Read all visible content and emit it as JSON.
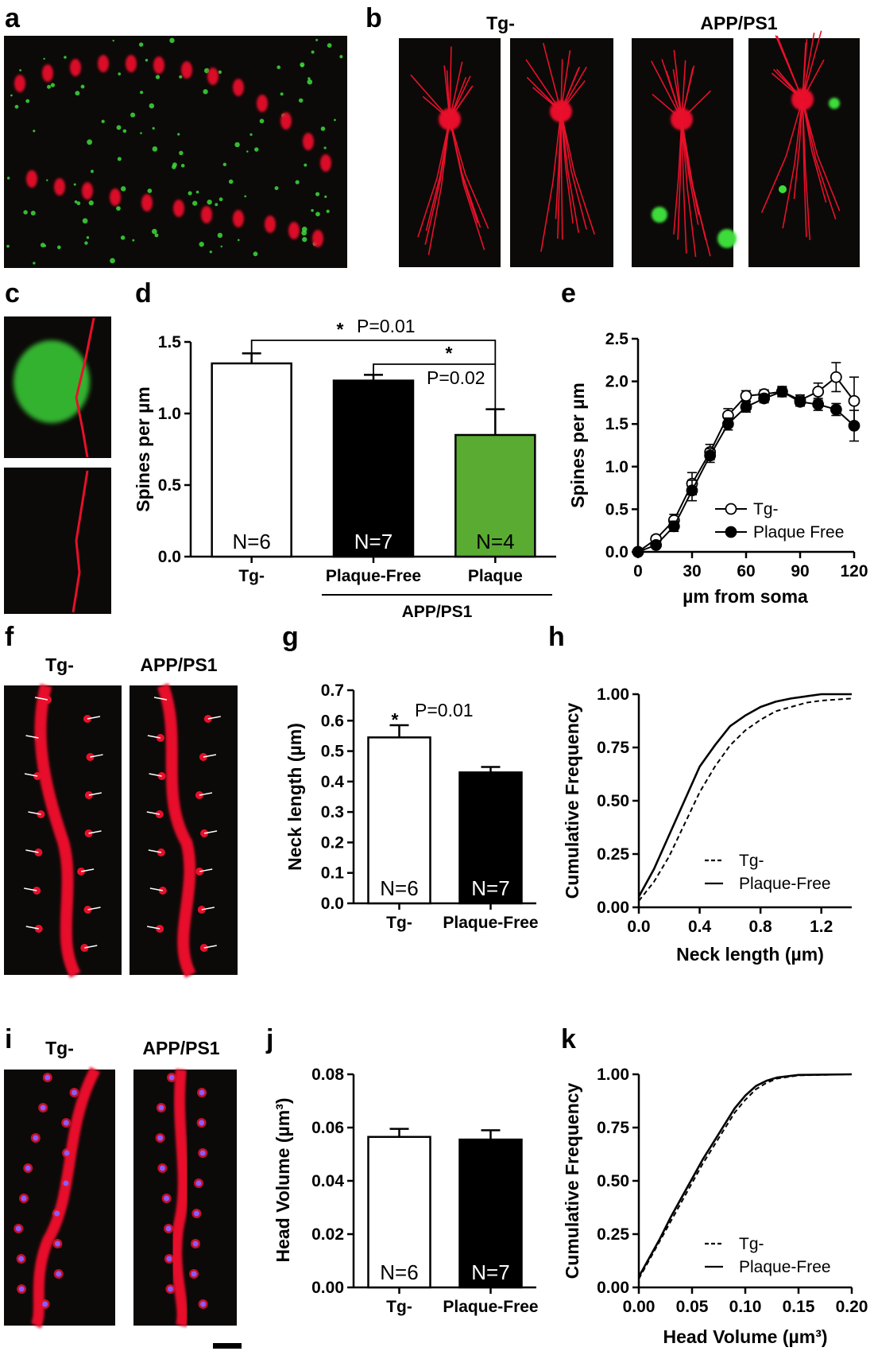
{
  "panel_labels": {
    "a": "a",
    "b": "b",
    "c": "c",
    "d": "d",
    "e": "e",
    "f": "f",
    "g": "g",
    "h": "h",
    "i": "i",
    "j": "j",
    "k": "k"
  },
  "image_headers": {
    "b_left": "Tg-",
    "b_right": "APP/PS1",
    "f_left": "Tg-",
    "f_right": "APP/PS1",
    "i_left": "Tg-",
    "i_right": "APP/PS1"
  },
  "colors": {
    "microscopy_bg": "#0a0808",
    "neuron_red": "#e8102a",
    "plaque_green": "#3ddc3a",
    "spine_marker": "#ffffff",
    "puncta_purple": "#8a5cff",
    "bar_tg": "#ffffff",
    "bar_plaque_free": "#000000",
    "bar_plaque": "#5aab32"
  },
  "icons": {
    "microscopy": "fluorescence-micrograph"
  },
  "chart_data": [
    {
      "id": "d",
      "type": "bar",
      "categories": [
        "Tg-",
        "Plaque-Free",
        "Plaque"
      ],
      "group_label": "APP/PS1",
      "values": [
        1.35,
        1.23,
        0.85
      ],
      "errors": [
        0.07,
        0.04,
        0.18
      ],
      "n_labels": [
        "N=6",
        "N=7",
        "N=4"
      ],
      "bar_colors": [
        "#ffffff",
        "#000000",
        "#5aab32"
      ],
      "ylabel": "Spines per µm",
      "ylim": [
        0,
        1.5
      ],
      "yticks": [
        "0.0",
        "0.5",
        "1.0",
        "1.5"
      ],
      "significance": [
        {
          "between": [
            0,
            2
          ],
          "star": "*",
          "p": "P=0.01"
        },
        {
          "between": [
            1,
            2
          ],
          "star": "*",
          "p": "P=0.02"
        }
      ]
    },
    {
      "id": "e",
      "type": "line",
      "xlabel": "µm from soma",
      "ylabel": "Spines per µm",
      "xlim": [
        0,
        120
      ],
      "ylim": [
        0,
        2.5
      ],
      "xticks": [
        "0",
        "30",
        "60",
        "90",
        "120"
      ],
      "yticks": [
        "0.0",
        "0.5",
        "1.0",
        "1.5",
        "2.0",
        "2.5"
      ],
      "x": [
        0,
        10,
        20,
        30,
        40,
        50,
        60,
        70,
        80,
        90,
        100,
        110,
        120
      ],
      "legend_position": "lower right",
      "series": [
        {
          "name": "Tg-",
          "marker": "open-circle",
          "values": [
            0.0,
            0.15,
            0.37,
            0.8,
            1.17,
            1.6,
            1.83,
            1.85,
            1.88,
            1.78,
            1.88,
            2.05,
            1.77
          ],
          "errors": [
            0.02,
            0.04,
            0.07,
            0.13,
            0.09,
            0.08,
            0.06,
            0.05,
            0.06,
            0.06,
            0.1,
            0.17,
            0.28
          ]
        },
        {
          "name": "Plaque Free",
          "marker": "filled-circle",
          "values": [
            0.0,
            0.08,
            0.3,
            0.72,
            1.13,
            1.5,
            1.7,
            1.8,
            1.88,
            1.76,
            1.73,
            1.67,
            1.48
          ],
          "errors": [
            0.02,
            0.03,
            0.06,
            0.12,
            0.08,
            0.07,
            0.06,
            0.05,
            0.05,
            0.05,
            0.07,
            0.07,
            0.18
          ]
        }
      ]
    },
    {
      "id": "g",
      "type": "bar",
      "categories": [
        "Tg-",
        "Plaque-Free"
      ],
      "values": [
        0.545,
        0.43
      ],
      "errors": [
        0.04,
        0.018
      ],
      "n_labels": [
        "N=6",
        "N=7"
      ],
      "bar_colors": [
        "#ffffff",
        "#000000"
      ],
      "ylabel": "Neck length (µm)",
      "ylim": [
        0,
        0.7
      ],
      "yticks": [
        "0.0",
        "0.1",
        "0.2",
        "0.3",
        "0.4",
        "0.5",
        "0.6",
        "0.7"
      ],
      "significance": [
        {
          "over": 0,
          "star": "*",
          "p": "P=0.01"
        }
      ]
    },
    {
      "id": "h",
      "type": "line",
      "xlabel": "Neck length (µm)",
      "ylabel": "Cumulative Frequency",
      "xlim": [
        0,
        1.4
      ],
      "ylim": [
        0,
        1
      ],
      "xticks": [
        "0.0",
        "0.4",
        "0.8",
        "1.2"
      ],
      "yticks": [
        "0.00",
        "0.25",
        "0.50",
        "0.75",
        "1.00"
      ],
      "legend_position": "lower right",
      "series": [
        {
          "name": "Tg-",
          "style": "dashed",
          "x": [
            0,
            0.1,
            0.2,
            0.3,
            0.4,
            0.5,
            0.6,
            0.7,
            0.8,
            0.9,
            1.0,
            1.1,
            1.2,
            1.3,
            1.4
          ],
          "values": [
            0.03,
            0.12,
            0.24,
            0.39,
            0.54,
            0.66,
            0.76,
            0.83,
            0.88,
            0.92,
            0.94,
            0.96,
            0.97,
            0.975,
            0.98
          ]
        },
        {
          "name": "Plaque-Free",
          "style": "solid",
          "x": [
            0,
            0.1,
            0.2,
            0.3,
            0.4,
            0.5,
            0.6,
            0.7,
            0.8,
            0.9,
            1.0,
            1.1,
            1.2,
            1.3,
            1.4
          ],
          "values": [
            0.05,
            0.18,
            0.34,
            0.5,
            0.66,
            0.76,
            0.85,
            0.9,
            0.94,
            0.965,
            0.98,
            0.99,
            1.0,
            1.0,
            1.0
          ]
        }
      ]
    },
    {
      "id": "j",
      "type": "bar",
      "categories": [
        "Tg-",
        "Plaque-Free"
      ],
      "values": [
        0.0565,
        0.0555
      ],
      "errors": [
        0.003,
        0.0035
      ],
      "n_labels": [
        "N=6",
        "N=7"
      ],
      "bar_colors": [
        "#ffffff",
        "#000000"
      ],
      "ylabel": "Head Volume (µm³)",
      "ylim": [
        0,
        0.08
      ],
      "yticks": [
        "0.00",
        "0.02",
        "0.04",
        "0.06",
        "0.08"
      ]
    },
    {
      "id": "k",
      "type": "line",
      "xlabel": "Head Volume (µm³)",
      "ylabel": "Cumulative Frequency",
      "xlim": [
        0,
        0.2
      ],
      "ylim": [
        0,
        1
      ],
      "xticks": [
        "0.00",
        "0.05",
        "0.10",
        "0.15",
        "0.20"
      ],
      "yticks": [
        "0.00",
        "0.25",
        "0.50",
        "0.75",
        "1.00"
      ],
      "legend_position": "lower right",
      "series": [
        {
          "name": "Tg-",
          "style": "dashed",
          "x": [
            0,
            0.01,
            0.02,
            0.03,
            0.04,
            0.05,
            0.06,
            0.07,
            0.08,
            0.09,
            0.1,
            0.11,
            0.12,
            0.13,
            0.15,
            0.2
          ],
          "values": [
            0.04,
            0.13,
            0.22,
            0.31,
            0.4,
            0.49,
            0.58,
            0.66,
            0.74,
            0.82,
            0.88,
            0.93,
            0.96,
            0.98,
            0.995,
            1.0
          ]
        },
        {
          "name": "Plaque-Free",
          "style": "solid",
          "x": [
            0,
            0.01,
            0.02,
            0.03,
            0.04,
            0.05,
            0.06,
            0.07,
            0.08,
            0.09,
            0.1,
            0.11,
            0.12,
            0.13,
            0.15,
            0.2
          ],
          "values": [
            0.05,
            0.14,
            0.23,
            0.33,
            0.42,
            0.51,
            0.6,
            0.68,
            0.76,
            0.84,
            0.9,
            0.945,
            0.97,
            0.985,
            0.997,
            1.0
          ]
        }
      ]
    }
  ]
}
